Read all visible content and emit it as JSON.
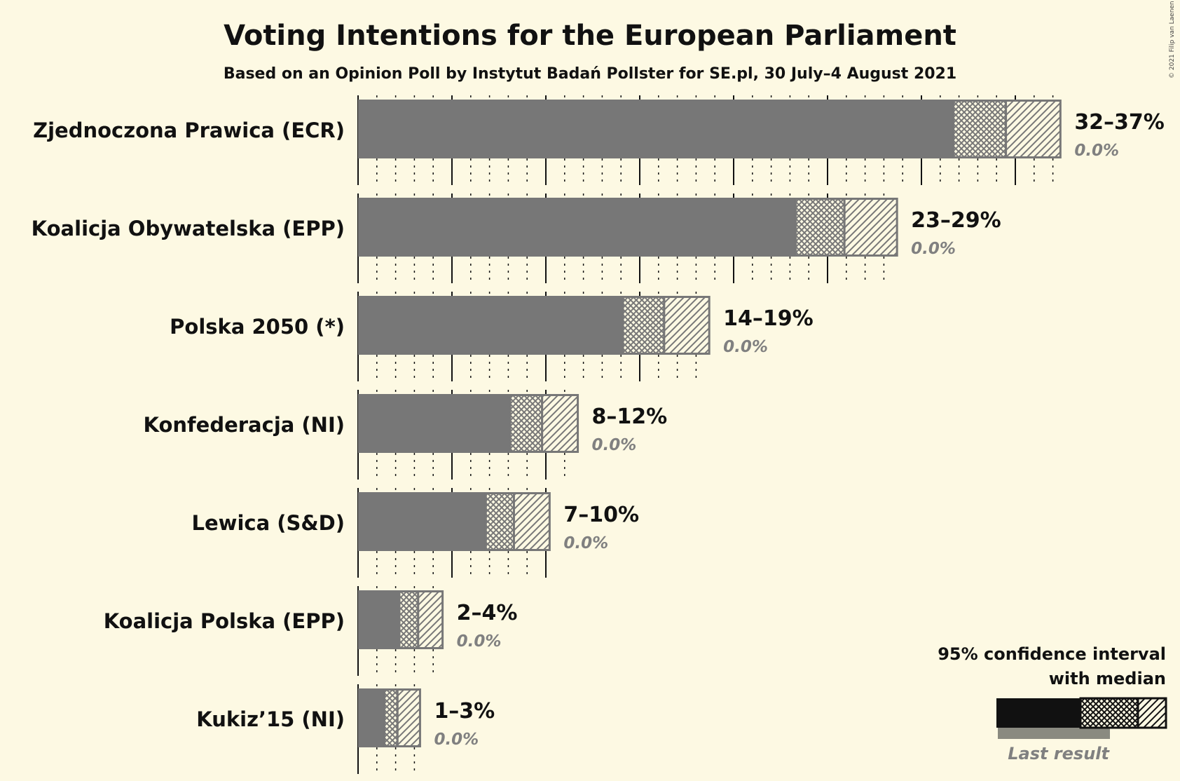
{
  "header": {
    "title": "Voting Intentions for the European Parliament",
    "subtitle": "Based on an Opinion Poll by Instytut Badań Pollster for SE.pl, 30 July–4 August 2021",
    "copyright": "© 2021 Filip van Laenen"
  },
  "legend": {
    "line1": "95% confidence interval",
    "line2": "with median",
    "last_result": "Last result"
  },
  "colors": {
    "background": "#fdf9e3",
    "bar_fill": "#777777",
    "bar_stroke": "#777777",
    "legend_bar": "#111111",
    "last_result_bar": "#8a8a80",
    "text": "#111111",
    "last_text": "#808080"
  },
  "chart_data": {
    "type": "bar",
    "orientation": "horizontal",
    "title": "Voting Intentions for the European Parliament",
    "subtitle": "Based on an Opinion Poll by Instytut Badań Pollster for SE.pl, 30 July–4 August 2021",
    "xlim": [
      0,
      37
    ],
    "grid": true,
    "gridlines": "major every 5%, minor every 1% (dotted)",
    "legend_position": "bottom-right",
    "categories": [
      "Zjednoczona Prawica (ECR)",
      "Koalicja Obywatelska (EPP)",
      "Polska 2050 (*)",
      "Konfederacja (NI)",
      "Lewica (S&D)",
      "Koalicja Polska (EPP)",
      "Kukiz’15 (NI)"
    ],
    "series": [
      {
        "name": "95% confidence interval",
        "ci80_low": [
          31.7,
          23.3,
          14.1,
          8.1,
          6.8,
          2.2,
          1.4
        ],
        "median": [
          34.5,
          25.9,
          16.3,
          9.8,
          8.3,
          3.2,
          2.1
        ],
        "ci95_high": [
          37.4,
          28.7,
          18.7,
          11.7,
          10.2,
          4.5,
          3.3
        ]
      },
      {
        "name": "Last result",
        "values": [
          0.0,
          0.0,
          0.0,
          0.0,
          0.0,
          0.0,
          0.0
        ]
      }
    ],
    "range_labels": [
      "32–37%",
      "23–29%",
      "14–19%",
      "8–12%",
      "7–10%",
      "2–4%",
      "1–3%"
    ],
    "last_result_labels": [
      "0.0%",
      "0.0%",
      "0.0%",
      "0.0%",
      "0.0%",
      "0.0%",
      "0.0%"
    ]
  }
}
